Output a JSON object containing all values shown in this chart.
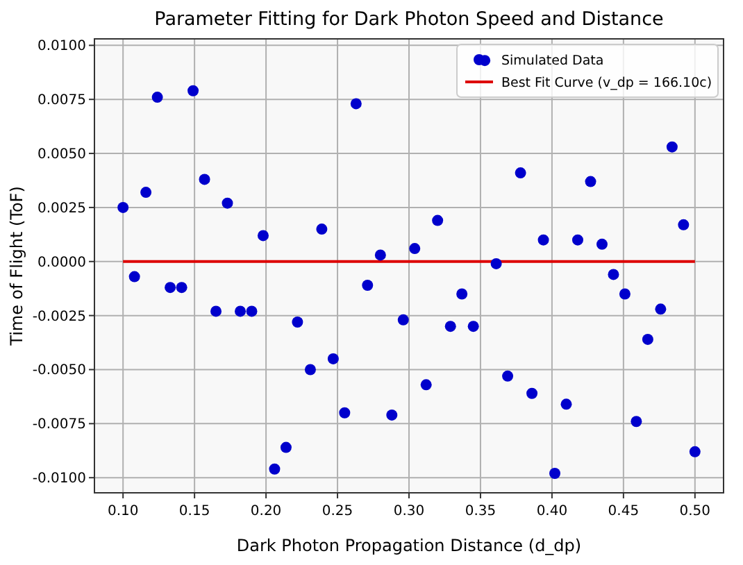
{
  "chart_data": {
    "type": "scatter",
    "title": "Parameter Fitting for Dark Photon Speed and Distance",
    "xlabel": "Dark Photon Propagation Distance (d_dp)",
    "ylabel": "Time of Flight (ToF)",
    "xlim": [
      0.08,
      0.52
    ],
    "xticks": [
      {
        "value": 0.1,
        "label": "0.10"
      },
      {
        "value": 0.15,
        "label": "0.15"
      },
      {
        "value": 0.2,
        "label": "0.20"
      },
      {
        "value": 0.25,
        "label": "0.25"
      },
      {
        "value": 0.3,
        "label": "0.30"
      },
      {
        "value": 0.35,
        "label": "0.35"
      },
      {
        "value": 0.4,
        "label": "0.40"
      },
      {
        "value": 0.45,
        "label": "0.45"
      },
      {
        "value": 0.5,
        "label": "0.50"
      }
    ],
    "ylim": [
      -0.0107,
      0.0103
    ],
    "yticks": [
      {
        "value": -0.01,
        "label": "-0.0100"
      },
      {
        "value": -0.0075,
        "label": "-0.0075"
      },
      {
        "value": -0.005,
        "label": "-0.0050"
      },
      {
        "value": -0.0025,
        "label": "-0.0025"
      },
      {
        "value": 0,
        "label": "0.0000"
      },
      {
        "value": 0.0025,
        "label": "0.0025"
      },
      {
        "value": 0.005,
        "label": "0.0050"
      },
      {
        "value": 0.0075,
        "label": "0.0075"
      },
      {
        "value": 0.01,
        "label": "0.0100"
      }
    ],
    "grid": true,
    "legend": "top right",
    "marker": "circle",
    "series": [
      {
        "name": "Simulated Data",
        "color": "#0000cc",
        "x": [
          0.1,
          0.108,
          0.116,
          0.124,
          0.133,
          0.141,
          0.149,
          0.157,
          0.165,
          0.173,
          0.182,
          0.19,
          0.198,
          0.206,
          0.214,
          0.222,
          0.231,
          0.239,
          0.247,
          0.255,
          0.263,
          0.271,
          0.28,
          0.288,
          0.296,
          0.304,
          0.312,
          0.32,
          0.329,
          0.337,
          0.345,
          0.353,
          0.361,
          0.369,
          0.378,
          0.386,
          0.394,
          0.402,
          0.41,
          0.418,
          0.427,
          0.435,
          0.443,
          0.451,
          0.459,
          0.467,
          0.476,
          0.484,
          0.492,
          0.5
        ],
        "values": [
          0.0025,
          -0.0007,
          0.0032,
          0.0076,
          -0.0012,
          -0.0012,
          0.0079,
          0.0038,
          -0.0023,
          0.0027,
          -0.0023,
          -0.0023,
          0.0012,
          -0.0096,
          -0.0086,
          -0.0028,
          -0.005,
          0.0015,
          -0.0045,
          -0.007,
          0.0073,
          -0.0011,
          0.0003,
          -0.0071,
          -0.0027,
          0.0006,
          -0.0057,
          0.0019,
          -0.003,
          -0.0015,
          -0.003,
          0.0093,
          -0.0001,
          -0.0053,
          0.0041,
          -0.0061,
          0.001,
          -0.0098,
          -0.0066,
          0.001,
          0.0037,
          0.0008,
          -0.0006,
          -0.0015,
          -0.0074,
          -0.0036,
          -0.0022,
          0.0053,
          0.0017,
          -0.0088
        ]
      },
      {
        "name": "Best Fit Curve (v_dp = 166.10c)",
        "type": "line",
        "color": "#dd0000",
        "marker": "none",
        "line_style": "solid",
        "x": [
          0.1,
          0.5
        ],
        "values": [
          0,
          0
        ]
      }
    ]
  }
}
